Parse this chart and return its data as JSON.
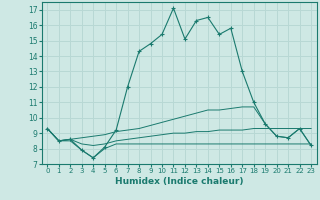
{
  "xlabel": "Humidex (Indice chaleur)",
  "ylabel": "",
  "xlim": [
    -0.5,
    23.5
  ],
  "ylim": [
    7,
    17.5
  ],
  "yticks": [
    7,
    8,
    9,
    10,
    11,
    12,
    13,
    14,
    15,
    16,
    17
  ],
  "xticks": [
    0,
    1,
    2,
    3,
    4,
    5,
    6,
    7,
    8,
    9,
    10,
    11,
    12,
    13,
    14,
    15,
    16,
    17,
    18,
    19,
    20,
    21,
    22,
    23
  ],
  "bg_color": "#cee8e4",
  "line_color": "#1a7a6e",
  "grid_color": "#b8d8d4",
  "series": {
    "main": [
      9.3,
      8.5,
      8.6,
      7.9,
      7.4,
      8.1,
      9.2,
      12.0,
      14.3,
      14.8,
      15.4,
      17.1,
      15.1,
      16.3,
      16.5,
      15.4,
      15.8,
      13.0,
      11.0,
      9.6,
      8.8,
      8.7,
      9.3,
      8.2
    ],
    "upper": [
      9.3,
      8.5,
      8.6,
      8.7,
      8.8,
      8.9,
      9.1,
      9.2,
      9.3,
      9.5,
      9.7,
      9.9,
      10.1,
      10.3,
      10.5,
      10.5,
      10.6,
      10.7,
      10.7,
      9.6,
      8.8,
      8.7,
      9.3,
      8.2
    ],
    "mid": [
      9.3,
      8.5,
      8.6,
      8.3,
      8.2,
      8.3,
      8.5,
      8.6,
      8.7,
      8.8,
      8.9,
      9.0,
      9.0,
      9.1,
      9.1,
      9.2,
      9.2,
      9.2,
      9.3,
      9.3,
      9.3,
      9.3,
      9.3,
      9.3
    ],
    "bottom": [
      9.3,
      8.5,
      8.5,
      7.9,
      7.4,
      8.0,
      8.3,
      8.3,
      8.3,
      8.3,
      8.3,
      8.3,
      8.3,
      8.3,
      8.3,
      8.3,
      8.3,
      8.3,
      8.3,
      8.3,
      8.3,
      8.3,
      8.3,
      8.3
    ]
  }
}
